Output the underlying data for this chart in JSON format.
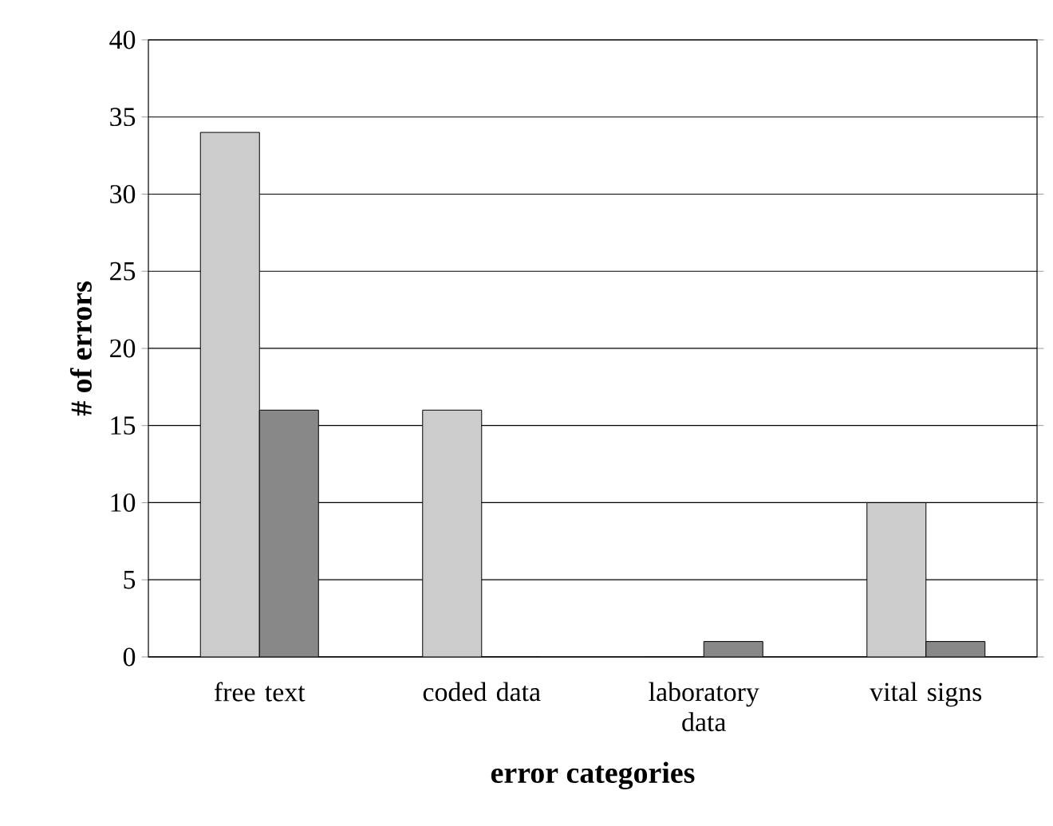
{
  "chart_data": {
    "type": "bar",
    "xlabel": "error categories",
    "ylabel": "# of errors",
    "categories": [
      "free text",
      "coded data",
      "laboratory data",
      "vital signs"
    ],
    "series": [
      {
        "color": "#cccccc",
        "values": [
          34,
          16,
          0,
          10
        ]
      },
      {
        "color": "#888888",
        "values": [
          16,
          0,
          1,
          1
        ]
      }
    ],
    "ylim": [
      0,
      40
    ],
    "yticks": [
      0,
      5,
      10,
      15,
      20,
      25,
      30,
      35,
      40
    ],
    "grid": "y"
  }
}
